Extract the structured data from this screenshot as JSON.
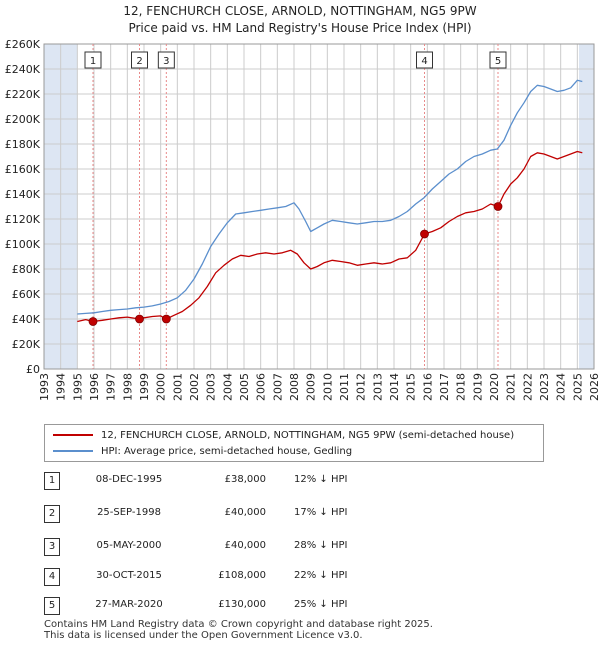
{
  "title_line1": "12, FENCHURCH CLOSE, ARNOLD, NOTTINGHAM, NG5 9PW",
  "title_line2": "Price paid vs. HM Land Registry's House Price Index (HPI)",
  "colors": {
    "property": "#c00000",
    "hpi": "#5b8fcd",
    "shade": "#dde6f3",
    "grid": "#cccccc",
    "marker_line": "#e88a8a"
  },
  "legend": {
    "property": "12, FENCHURCH CLOSE, ARNOLD, NOTTINGHAM, NG5 9PW (semi-detached house)",
    "hpi": "HPI: Average price, semi-detached house, Gedling"
  },
  "sales": [
    {
      "num": "1",
      "date": "08-DEC-1995",
      "price": "£38,000",
      "diff": "12% ↓ HPI"
    },
    {
      "num": "2",
      "date": "25-SEP-1998",
      "price": "£40,000",
      "diff": "17% ↓ HPI"
    },
    {
      "num": "3",
      "date": "05-MAY-2000",
      "price": "£40,000",
      "diff": "28% ↓ HPI"
    },
    {
      "num": "4",
      "date": "30-OCT-2015",
      "price": "£108,000",
      "diff": "22% ↓ HPI"
    },
    {
      "num": "5",
      "date": "27-MAR-2020",
      "price": "£130,000",
      "diff": "25% ↓ HPI"
    }
  ],
  "footer_line1": "Contains HM Land Registry data © Crown copyright and database right 2025.",
  "footer_line2": "This data is licensed under the Open Government Licence v3.0.",
  "chart_data": {
    "type": "line",
    "title": "Price paid vs. HM Land Registry's House Price Index (HPI)",
    "xlim": [
      1993,
      2026
    ],
    "ylim": [
      0,
      260000
    ],
    "yticks": [
      0,
      20000,
      40000,
      60000,
      80000,
      100000,
      120000,
      140000,
      160000,
      180000,
      200000,
      220000,
      240000,
      260000
    ],
    "ytick_labels": [
      "£0",
      "£20K",
      "£40K",
      "£60K",
      "£80K",
      "£100K",
      "£120K",
      "£140K",
      "£160K",
      "£180K",
      "£200K",
      "£220K",
      "£240K",
      "£260K"
    ],
    "xticks": [
      1993,
      1994,
      1995,
      1996,
      1997,
      1998,
      1999,
      2000,
      2001,
      2002,
      2003,
      2004,
      2005,
      2006,
      2007,
      2008,
      2009,
      2010,
      2011,
      2012,
      2013,
      2014,
      2015,
      2016,
      2017,
      2018,
      2019,
      2020,
      2021,
      2022,
      2023,
      2024,
      2025,
      2026
    ],
    "shaded_ranges": [
      [
        1993,
        1995.0
      ],
      [
        2025.1,
        2026
      ]
    ],
    "grid": true,
    "series": [
      {
        "name": "12, FENCHURCH CLOSE, ARNOLD, NOTTINGHAM, NG5 9PW (semi-detached house)",
        "x": [
          1995.0,
          1995.5,
          1995.94,
          1996.5,
          1997,
          1997.5,
          1998,
          1998.73,
          1999,
          1999.5,
          2000.0,
          2000.34,
          2000.8,
          2001.3,
          2001.8,
          2002.3,
          2002.8,
          2003.3,
          2003.8,
          2004.3,
          2004.8,
          2005.3,
          2005.8,
          2006.3,
          2006.8,
          2007.3,
          2007.8,
          2008.2,
          2008.6,
          2009.0,
          2009.4,
          2009.8,
          2010.3,
          2010.8,
          2011.3,
          2011.8,
          2012.3,
          2012.8,
          2013.3,
          2013.8,
          2014.3,
          2014.8,
          2015.3,
          2015.83,
          2016.3,
          2016.8,
          2017.3,
          2017.8,
          2018.3,
          2018.8,
          2019.3,
          2019.8,
          2020.24,
          2020.6,
          2021.0,
          2021.4,
          2021.8,
          2022.2,
          2022.6,
          2023.0,
          2023.4,
          2023.8,
          2024.2,
          2024.6,
          2025.0,
          2025.3
        ],
        "values": [
          38000,
          39500,
          38000,
          39000,
          40000,
          41000,
          41500,
          40000,
          41000,
          42000,
          42500,
          40000,
          43000,
          46000,
          51000,
          57000,
          66000,
          77000,
          83000,
          88000,
          91000,
          90000,
          92000,
          93000,
          92000,
          93000,
          95000,
          92000,
          85000,
          80000,
          82000,
          85000,
          87000,
          86000,
          85000,
          83000,
          84000,
          85000,
          84000,
          85000,
          88000,
          89000,
          95000,
          108000,
          110000,
          113000,
          118000,
          122000,
          125000,
          126000,
          128000,
          132000,
          130000,
          140000,
          148000,
          153000,
          160000,
          170000,
          173000,
          172000,
          170000,
          168000,
          170000,
          172000,
          174000,
          173000
        ]
      },
      {
        "name": "HPI: Average price, semi-detached house, Gedling",
        "x": [
          1995.0,
          1995.5,
          1996,
          1996.5,
          1997,
          1997.5,
          1998,
          1998.5,
          1999,
          1999.5,
          2000,
          2000.5,
          2001,
          2001.5,
          2002,
          2002.5,
          2003,
          2003.5,
          2004,
          2004.5,
          2005,
          2005.5,
          2006,
          2006.5,
          2007,
          2007.5,
          2008,
          2008.3,
          2008.7,
          2009.0,
          2009.4,
          2009.8,
          2010.3,
          2010.8,
          2011.3,
          2011.8,
          2012.3,
          2012.8,
          2013.3,
          2013.8,
          2014.3,
          2014.8,
          2015.3,
          2015.8,
          2016.3,
          2016.8,
          2017.3,
          2017.8,
          2018.3,
          2018.8,
          2019.3,
          2019.8,
          2020.2,
          2020.6,
          2021.0,
          2021.4,
          2021.8,
          2022.2,
          2022.6,
          2023.0,
          2023.4,
          2023.8,
          2024.2,
          2024.6,
          2025.0,
          2025.3
        ],
        "values": [
          44000,
          44500,
          45000,
          46000,
          47000,
          47500,
          48000,
          49000,
          49500,
          50500,
          52000,
          54000,
          57000,
          63000,
          72000,
          84000,
          98000,
          108000,
          117000,
          124000,
          125000,
          126000,
          127000,
          128000,
          129000,
          130000,
          133000,
          128000,
          118000,
          110000,
          113000,
          116000,
          119000,
          118000,
          117000,
          116000,
          117000,
          118000,
          118000,
          119000,
          122000,
          126000,
          132000,
          137000,
          144000,
          150000,
          156000,
          160000,
          166000,
          170000,
          172000,
          175000,
          176000,
          183000,
          195000,
          205000,
          213000,
          222000,
          227000,
          226000,
          224000,
          222000,
          223000,
          225000,
          231000,
          230000
        ]
      }
    ],
    "sale_points": [
      {
        "label": "1",
        "x": 1995.94,
        "y": 38000
      },
      {
        "label": "2",
        "x": 1998.73,
        "y": 40000
      },
      {
        "label": "3",
        "x": 2000.34,
        "y": 40000
      },
      {
        "label": "4",
        "x": 2015.83,
        "y": 108000
      },
      {
        "label": "5",
        "x": 2020.24,
        "y": 130000
      }
    ],
    "legend_position": "below"
  }
}
